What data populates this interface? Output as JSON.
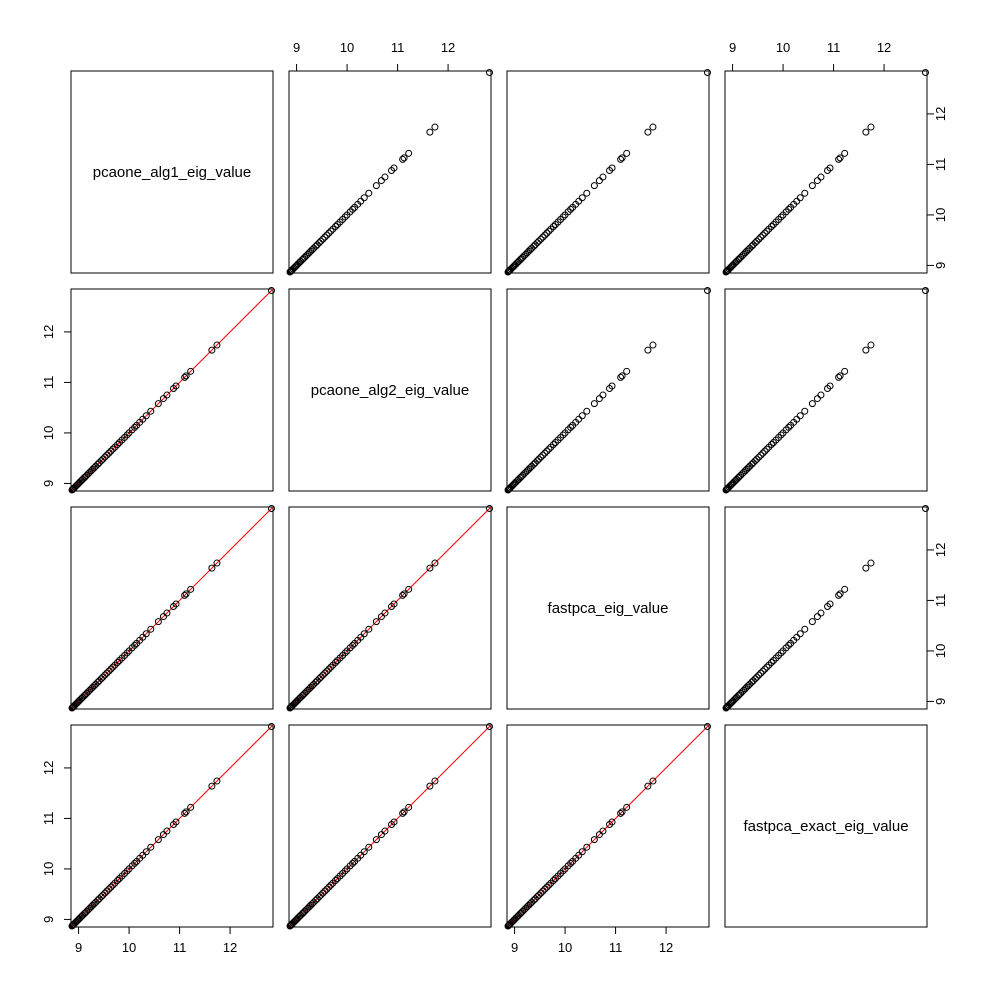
{
  "chart_data": {
    "type": "scatter",
    "variables": [
      "pcaone_alg1_eig_value",
      "pcaone_alg2_eig_value",
      "fastpca_eig_value",
      "fastpca_exact_eig_value"
    ],
    "axis_range": [
      8.85,
      12.85
    ],
    "ticks": [
      9,
      10,
      11,
      12
    ],
    "tick_labels": [
      "9",
      "10",
      "11",
      "12"
    ],
    "reference_line": {
      "slope": 1,
      "intercept": 0,
      "color": "#ff0000",
      "shown_in": "lower panels"
    },
    "eigenvalues": [
      12.82,
      11.74,
      11.64,
      11.22,
      11.13,
      11.1,
      10.93,
      10.88,
      10.75,
      10.68,
      10.58,
      10.43,
      10.34,
      10.27,
      10.21,
      10.15,
      10.11,
      10.06,
      10.0,
      9.96,
      9.91,
      9.86,
      9.81,
      9.77,
      9.72,
      9.68,
      9.64,
      9.6,
      9.56,
      9.52,
      9.48,
      9.45,
      9.41,
      9.38,
      9.34,
      9.31,
      9.28,
      9.25,
      9.22,
      9.19,
      9.16,
      9.13,
      9.11,
      9.08,
      9.06,
      9.03,
      9.01,
      8.99,
      8.97,
      8.95,
      8.93,
      8.91,
      8.9,
      8.89,
      8.88,
      8.87
    ]
  }
}
